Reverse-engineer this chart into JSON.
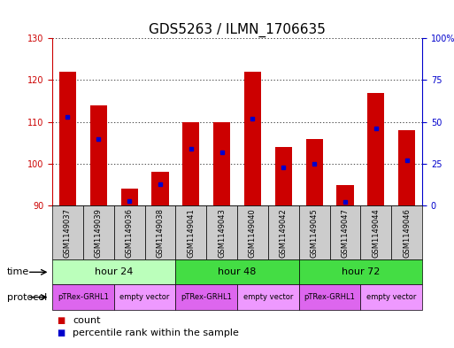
{
  "title": "GDS5263 / ILMN_1706635",
  "samples": [
    "GSM1149037",
    "GSM1149039",
    "GSM1149036",
    "GSM1149038",
    "GSM1149041",
    "GSM1149043",
    "GSM1149040",
    "GSM1149042",
    "GSM1149045",
    "GSM1149047",
    "GSM1149044",
    "GSM1149046"
  ],
  "counts": [
    122,
    114,
    94,
    98,
    110,
    110,
    122,
    104,
    106,
    95,
    117,
    108
  ],
  "percentile_ranks": [
    53,
    40,
    3,
    13,
    34,
    32,
    52,
    23,
    25,
    2,
    46,
    27
  ],
  "ylim_left": [
    90,
    130
  ],
  "ylim_right": [
    0,
    100
  ],
  "yticks_left": [
    90,
    100,
    110,
    120,
    130
  ],
  "yticks_right": [
    0,
    25,
    50,
    75,
    100
  ],
  "ytick_labels_right": [
    "0",
    "25",
    "50",
    "75",
    "100%"
  ],
  "bar_color": "#cc0000",
  "percentile_color": "#0000cc",
  "bar_bottom": 90,
  "bar_width": 0.55,
  "time_data": [
    {
      "label": "hour 24",
      "start": 0,
      "end": 4,
      "color": "#bbffbb"
    },
    {
      "label": "hour 48",
      "start": 4,
      "end": 8,
      "color": "#44dd44"
    },
    {
      "label": "hour 72",
      "start": 8,
      "end": 12,
      "color": "#44dd44"
    }
  ],
  "protocol_data": [
    {
      "label": "pTRex-GRHL1",
      "start": 0,
      "end": 2,
      "color": "#dd66ee"
    },
    {
      "label": "empty vector",
      "start": 2,
      "end": 4,
      "color": "#ee99ff"
    },
    {
      "label": "pTRex-GRHL1",
      "start": 4,
      "end": 6,
      "color": "#dd66ee"
    },
    {
      "label": "empty vector",
      "start": 6,
      "end": 8,
      "color": "#ee99ff"
    },
    {
      "label": "pTRex-GRHL1",
      "start": 8,
      "end": 10,
      "color": "#dd66ee"
    },
    {
      "label": "empty vector",
      "start": 10,
      "end": 12,
      "color": "#ee99ff"
    }
  ],
  "sample_bg_color": "#cccccc",
  "left_axis_color": "#cc0000",
  "right_axis_color": "#0000cc",
  "title_fontsize": 11,
  "tick_fontsize": 7,
  "sample_fontsize": 6,
  "row_label_fontsize": 8,
  "legend_fontsize": 8
}
